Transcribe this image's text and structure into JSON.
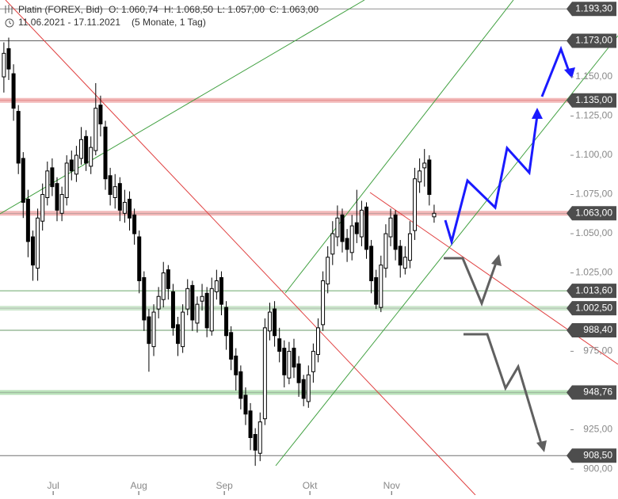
{
  "chart_data": {
    "type": "candlestick",
    "title": "Platin (FOREX, Bid)",
    "open_label": "O: 1.060,74",
    "high_label": "H: 1.068,50",
    "low_label": "L: 1.057,00",
    "close_label": "C: 1.063,00",
    "date_range": "11.06.2021 - 17.11.2021",
    "period": "(5 Monate, 1 Tag)",
    "xlim": [
      -0.8,
      117.2
    ],
    "xticks": [
      {
        "value": 10.2,
        "label": "Jul"
      },
      {
        "value": 27.9,
        "label": "Aug"
      },
      {
        "value": 45.6,
        "label": "Sep"
      },
      {
        "value": 63.3,
        "label": "Okt"
      },
      {
        "value": 80.2,
        "label": "Nov"
      }
    ],
    "ylim": [
      896,
      1199
    ],
    "yticks": [
      {
        "value": 900,
        "label": "900,00"
      },
      {
        "value": 925,
        "label": "925,00"
      },
      {
        "value": 975,
        "label": "975,00"
      },
      {
        "value": 1025,
        "label": "1.025,00"
      },
      {
        "value": 1050,
        "label": "1.050,00"
      },
      {
        "value": 1075,
        "label": "1.075,00"
      },
      {
        "value": 1100,
        "label": "1.100,00"
      },
      {
        "value": 1125,
        "label": "1.125,00"
      },
      {
        "value": 1150,
        "label": "1.150,00"
      }
    ],
    "up_color": "#ffffff",
    "down_color": "#000000",
    "open": [
      1150,
      1168,
      1152,
      1128,
      1098,
      1072,
      1048,
      1028,
      1058,
      1073,
      1092,
      1082,
      1063,
      1073,
      1097,
      1088,
      1098,
      1112,
      1093,
      1103,
      1132,
      1118,
      1087,
      1073,
      1082,
      1063,
      1072,
      1062,
      1048,
      1022,
      997,
      978,
      1002,
      1008,
      1027,
      1013,
      992,
      978,
      1002,
      1017,
      993,
      1007,
      1012,
      988,
      1013,
      1022,
      1003,
      987,
      972,
      962,
      947,
      937,
      922,
      910,
      932,
      988,
      1002,
      983,
      977,
      958,
      977,
      967,
      957,
      943,
      962,
      973,
      992,
      1018,
      1037,
      1048,
      1062,
      1047,
      1038,
      1057,
      1048,
      1067,
      1042,
      1022,
      1003,
      1028,
      1048,
      1062,
      1042,
      1028,
      1033,
      1052,
      1083,
      1092,
      1097,
      1060.74
    ],
    "high": [
      1172,
      1175,
      1158,
      1132,
      1102,
      1078,
      1052,
      1066,
      1082,
      1096,
      1098,
      1086,
      1080,
      1100,
      1103,
      1106,
      1118,
      1116,
      1112,
      1146,
      1138,
      1122,
      1092,
      1088,
      1086,
      1078,
      1077,
      1066,
      1052,
      1026,
      1002,
      1005,
      1016,
      1032,
      1030,
      1018,
      997,
      1005,
      1021,
      1020,
      1010,
      1018,
      1016,
      1022,
      1027,
      1026,
      1007,
      991,
      977,
      966,
      952,
      942,
      926,
      936,
      996,
      1006,
      1007,
      990,
      982,
      981,
      983,
      972,
      960,
      966,
      980,
      996,
      1026,
      1042,
      1058,
      1068,
      1066,
      1053,
      1062,
      1078,
      1071,
      1070,
      1046,
      1027,
      1036,
      1056,
      1066,
      1065,
      1046,
      1042,
      1058,
      1092,
      1098,
      1104,
      1100,
      1068.5
    ],
    "low": [
      1140,
      1148,
      1122,
      1088,
      1060,
      1035,
      1020,
      1020,
      1052,
      1068,
      1074,
      1058,
      1058,
      1068,
      1084,
      1083,
      1094,
      1090,
      1088,
      1100,
      1112,
      1078,
      1068,
      1066,
      1058,
      1057,
      1052,
      1043,
      1012,
      988,
      962,
      972,
      996,
      1003,
      1008,
      985,
      972,
      974,
      998,
      988,
      987,
      1001,
      984,
      985,
      1008,
      998,
      976,
      963,
      950,
      938,
      928,
      912,
      902,
      905,
      928,
      982,
      978,
      968,
      952,
      954,
      958,
      946,
      940,
      939,
      955,
      968,
      988,
      1012,
      1030,
      1042,
      1038,
      1032,
      1033,
      1044,
      1042,
      1034,
      1012,
      1002,
      1000,
      1022,
      1042,
      1033,
      1022,
      1024,
      1028,
      1046,
      1076,
      1080,
      1068,
      1057
    ],
    "close": [
      1165,
      1155,
      1130,
      1095,
      1070,
      1045,
      1030,
      1060,
      1075,
      1090,
      1080,
      1065,
      1075,
      1095,
      1090,
      1100,
      1110,
      1095,
      1105,
      1130,
      1120,
      1085,
      1075,
      1080,
      1065,
      1070,
      1060,
      1050,
      1020,
      995,
      980,
      1000,
      1010,
      1025,
      1015,
      990,
      980,
      1000,
      1015,
      995,
      1005,
      1010,
      990,
      1015,
      1020,
      1005,
      985,
      970,
      960,
      945,
      935,
      920,
      912,
      930,
      990,
      1000,
      985,
      975,
      960,
      975,
      965,
      955,
      945,
      960,
      975,
      990,
      1020,
      1035,
      1050,
      1060,
      1045,
      1040,
      1055,
      1050,
      1065,
      1040,
      1020,
      1005,
      1030,
      1050,
      1060,
      1040,
      1030,
      1035,
      1050,
      1085,
      1090,
      1095,
      1075,
      1063
    ],
    "levels": [
      {
        "value": 1193.3,
        "label": "1.193,30",
        "color": "#909090"
      },
      {
        "value": 1173,
        "label": "1.173,00",
        "color": "#606060"
      },
      {
        "value": 1135,
        "label": "1.135,00",
        "color": "#f2b8b8"
      },
      {
        "value": 1063,
        "label": "1.063,00",
        "color": "#f2b8b8"
      },
      {
        "value": 1013.6,
        "label": "1.013,60",
        "color": "#6aa86a"
      },
      {
        "value": 1002.5,
        "label": "1.002,50",
        "color": "#cfe8cf"
      },
      {
        "value": 988.4,
        "label": "988,40",
        "color": "#6a9a6a"
      },
      {
        "value": 948.76,
        "label": "948,76",
        "color": "#b8e0b8"
      },
      {
        "value": 908.5,
        "label": "908,50",
        "color": "#707070"
      }
    ]
  }
}
